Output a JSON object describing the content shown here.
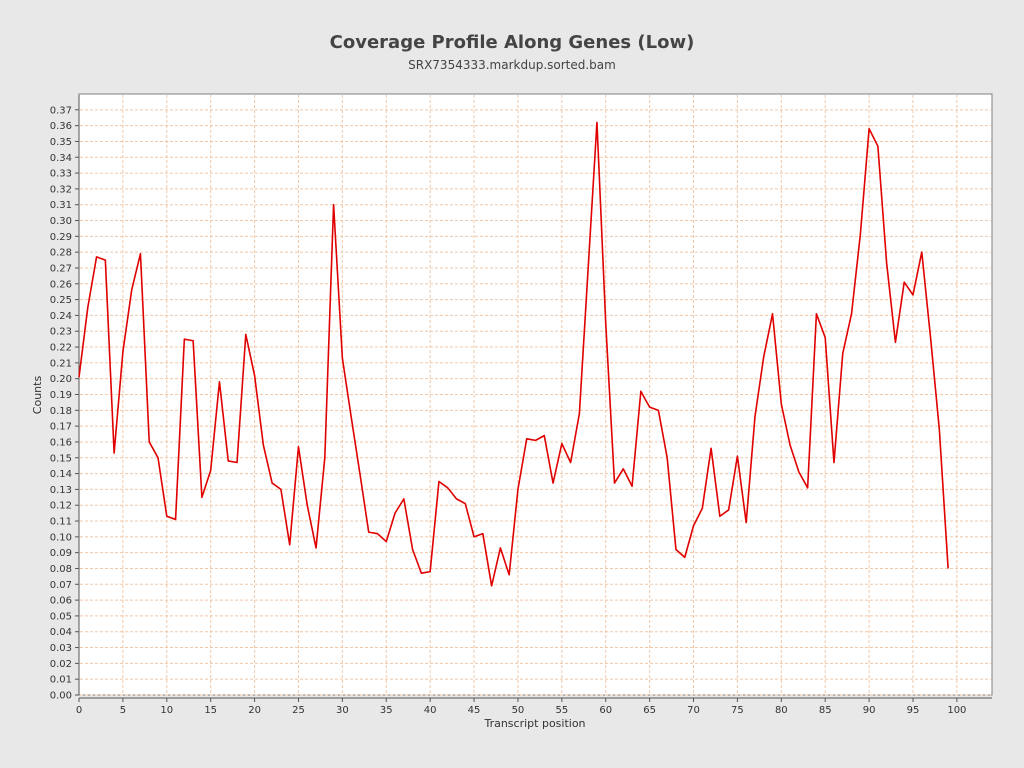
{
  "chart_data": {
    "type": "line",
    "title": "Coverage Profile Along Genes (Low)",
    "subtitle": "SRX7354333.markdup.sorted.bam",
    "xlabel": "Transcript position",
    "ylabel": "Counts",
    "xlim": [
      0,
      104
    ],
    "ylim": [
      0,
      0.38
    ],
    "xticks": [
      0,
      5,
      10,
      15,
      20,
      25,
      30,
      35,
      40,
      45,
      50,
      55,
      60,
      65,
      70,
      75,
      80,
      85,
      90,
      95,
      100
    ],
    "yticks": [
      "0.00",
      "0.01",
      "0.02",
      "0.03",
      "0.04",
      "0.05",
      "0.06",
      "0.07",
      "0.08",
      "0.09",
      "0.10",
      "0.11",
      "0.12",
      "0.13",
      "0.14",
      "0.15",
      "0.16",
      "0.17",
      "0.18",
      "0.19",
      "0.20",
      "0.21",
      "0.22",
      "0.23",
      "0.24",
      "0.25",
      "0.26",
      "0.27",
      "0.28",
      "0.29",
      "0.30",
      "0.31",
      "0.32",
      "0.33",
      "0.34",
      "0.35",
      "0.36",
      "0.37"
    ],
    "grid": true,
    "line_color": "#e00000",
    "series": [
      {
        "x": [
          0,
          1,
          2,
          3,
          4,
          5,
          6,
          7,
          8,
          9,
          10,
          11,
          12,
          13,
          14,
          15,
          16,
          17,
          18,
          19,
          20,
          21,
          22,
          23,
          24,
          25,
          26,
          27,
          28,
          29,
          30,
          31,
          32,
          33,
          34,
          35,
          36,
          37,
          38,
          39,
          40,
          41,
          42,
          43,
          44,
          45,
          46,
          47,
          48,
          49,
          50,
          51,
          52,
          53,
          54,
          55,
          56,
          57,
          58,
          59,
          60,
          61,
          62,
          63,
          64,
          65,
          66,
          67,
          68,
          69,
          70,
          71,
          72,
          73,
          74,
          75,
          76,
          77,
          78,
          79,
          80,
          81,
          82,
          83,
          84,
          85,
          86,
          87,
          88,
          89,
          90,
          91,
          92,
          93,
          94,
          95,
          96,
          97,
          98,
          99
        ],
        "values": [
          0.201,
          0.245,
          0.277,
          0.275,
          0.153,
          0.217,
          0.256,
          0.279,
          0.16,
          0.15,
          0.113,
          0.111,
          0.225,
          0.224,
          0.125,
          0.142,
          0.198,
          0.148,
          0.147,
          0.228,
          0.202,
          0.158,
          0.134,
          0.13,
          0.095,
          0.157,
          0.12,
          0.093,
          0.15,
          0.31,
          0.213,
          0.176,
          0.14,
          0.103,
          0.102,
          0.097,
          0.115,
          0.124,
          0.092,
          0.077,
          0.078,
          0.135,
          0.131,
          0.124,
          0.121,
          0.1,
          0.102,
          0.069,
          0.093,
          0.076,
          0.13,
          0.162,
          0.161,
          0.164,
          0.134,
          0.159,
          0.147,
          0.178,
          0.27,
          0.362,
          0.235,
          0.134,
          0.143,
          0.132,
          0.192,
          0.182,
          0.18,
          0.15,
          0.092,
          0.087,
          0.107,
          0.118,
          0.156,
          0.113,
          0.117,
          0.151,
          0.109,
          0.176,
          0.214,
          0.241,
          0.184,
          0.158,
          0.141,
          0.131,
          0.241,
          0.226,
          0.147,
          0.216,
          0.241,
          0.291,
          0.358,
          0.347,
          0.273,
          0.223,
          0.261,
          0.253,
          0.28,
          0.226,
          0.168,
          0.08
        ]
      }
    ]
  }
}
